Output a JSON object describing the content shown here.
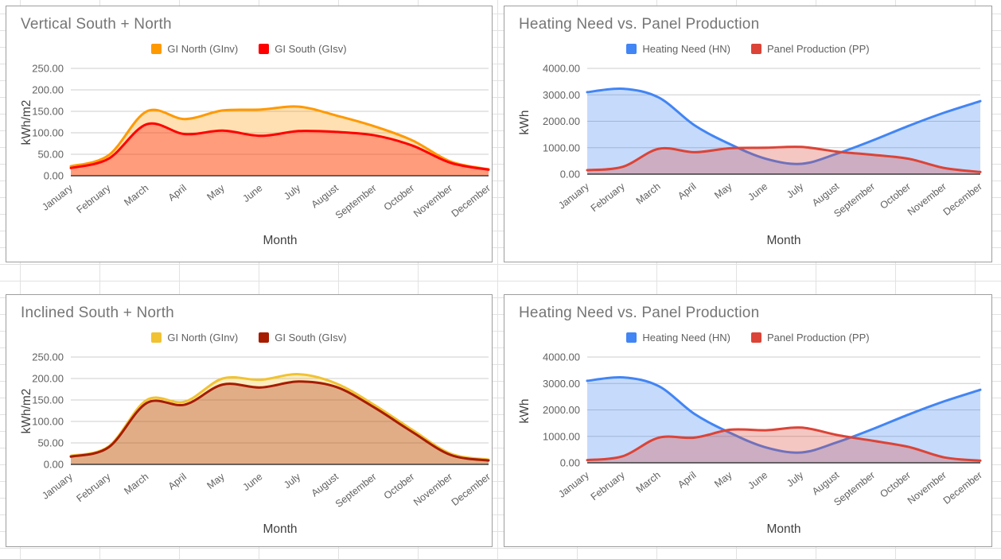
{
  "app": {
    "kind": "spreadsheet with embedded charts",
    "grid_line_color": "#e2e2e2",
    "chart_border_color": "#9e9e9e"
  },
  "chart_data": [
    {
      "type": "area",
      "title": "Vertical South + North",
      "xlabel": "Month",
      "ylabel": "kWh/m2",
      "ylim": [
        0,
        250
      ],
      "yticks": [
        "0.00",
        "50.00",
        "100.00",
        "150.00",
        "200.00",
        "250.00"
      ],
      "grid": true,
      "legend_position": "top",
      "smooth": true,
      "area_opacity": 0.3,
      "categories": [
        "January",
        "February",
        "March",
        "April",
        "May",
        "June",
        "July",
        "August",
        "September",
        "October",
        "November",
        "December"
      ],
      "series": [
        {
          "name": "GI North (GInv)",
          "color": "#FF9900",
          "values": [
            22,
            48,
            150,
            132,
            152,
            154,
            161,
            140,
            115,
            82,
            33,
            15
          ]
        },
        {
          "name": "GI South (GIsv)",
          "color": "#FF0000",
          "values": [
            18,
            40,
            120,
            97,
            105,
            93,
            104,
            102,
            94,
            70,
            30,
            14
          ]
        }
      ]
    },
    {
      "type": "area",
      "title": "Heating Need vs. Panel Production",
      "xlabel": "Month",
      "ylabel": "kWh",
      "ylim": [
        0,
        4000
      ],
      "yticks": [
        "0.00",
        "1000.00",
        "2000.00",
        "3000.00",
        "4000.00"
      ],
      "grid": true,
      "legend_position": "top",
      "smooth": true,
      "area_opacity": 0.3,
      "categories": [
        "January",
        "February",
        "March",
        "April",
        "May",
        "June",
        "July",
        "August",
        "September",
        "October",
        "November",
        "December"
      ],
      "series": [
        {
          "name": "Heating Need (HN)",
          "color": "#4285F4",
          "values": [
            3100,
            3230,
            2900,
            1850,
            1130,
            580,
            390,
            780,
            1280,
            1830,
            2330,
            2760
          ]
        },
        {
          "name": "Panel Production (PP)",
          "color": "#DB4437",
          "values": [
            150,
            280,
            960,
            830,
            980,
            1000,
            1030,
            850,
            730,
            580,
            230,
            80
          ]
        }
      ]
    },
    {
      "type": "area",
      "title": "Inclined South + North",
      "xlabel": "Month",
      "ylabel": "kWh/m2",
      "ylim": [
        0,
        250
      ],
      "yticks": [
        "0.00",
        "50.00",
        "100.00",
        "150.00",
        "200.00",
        "250.00"
      ],
      "grid": true,
      "legend_position": "top",
      "smooth": true,
      "area_opacity": 0.3,
      "categories": [
        "January",
        "February",
        "March",
        "April",
        "May",
        "June",
        "July",
        "August",
        "September",
        "October",
        "November",
        "December"
      ],
      "series": [
        {
          "name": "GI North (GInv)",
          "color": "#F1C232",
          "values": [
            20,
            42,
            150,
            146,
            200,
            197,
            210,
            188,
            138,
            80,
            25,
            11
          ]
        },
        {
          "name": "GI South (GIsv)",
          "color": "#A61C00",
          "values": [
            18,
            40,
            143,
            139,
            186,
            179,
            193,
            180,
            132,
            75,
            22,
            9
          ]
        }
      ]
    },
    {
      "type": "area",
      "title": "Heating Need vs. Panel Production",
      "xlabel": "Month",
      "ylabel": "kWh",
      "ylim": [
        0,
        4000
      ],
      "yticks": [
        "0.00",
        "1000.00",
        "2000.00",
        "3000.00",
        "4000.00"
      ],
      "grid": true,
      "legend_position": "top",
      "smooth": true,
      "area_opacity": 0.3,
      "categories": [
        "January",
        "February",
        "March",
        "April",
        "May",
        "June",
        "July",
        "August",
        "September",
        "October",
        "November",
        "December"
      ],
      "series": [
        {
          "name": "Heating Need (HN)",
          "color": "#4285F4",
          "values": [
            3100,
            3230,
            2900,
            1850,
            1130,
            580,
            390,
            780,
            1280,
            1830,
            2330,
            2760
          ]
        },
        {
          "name": "Panel Production (PP)",
          "color": "#DB4437",
          "values": [
            100,
            250,
            950,
            950,
            1250,
            1230,
            1330,
            1050,
            830,
            600,
            200,
            80
          ]
        }
      ]
    }
  ]
}
